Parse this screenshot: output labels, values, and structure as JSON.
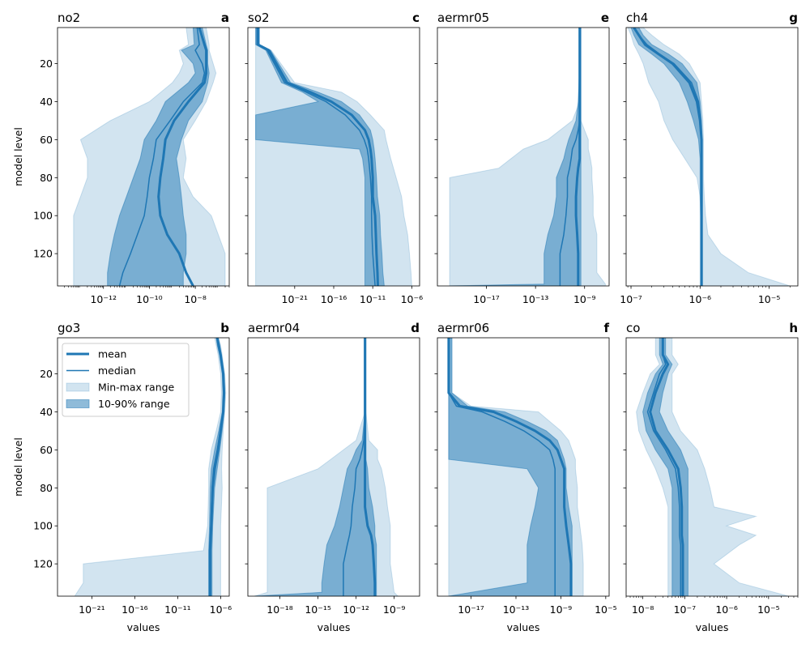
{
  "common": {
    "ylabel": "model level",
    "xlabel": "values",
    "ylim": [
      137,
      1
    ],
    "yticks": [
      20,
      40,
      60,
      80,
      100,
      120
    ],
    "colors": {
      "line": "#1f77b4",
      "minmax": "#1f77b4",
      "minmax_opacity": 0.2,
      "pct": "#1f77b4",
      "pct_opacity": 0.5
    }
  },
  "legend": [
    {
      "label": "mean",
      "style": "mean"
    },
    {
      "label": "median",
      "style": "median"
    },
    {
      "label": "Min-max range",
      "style": "minmax"
    },
    {
      "label": "10-90% range",
      "style": "pct"
    }
  ],
  "chart_data": [
    {
      "id": "no2",
      "title": "no2",
      "letter": "a",
      "type": "area",
      "xscale": "log",
      "xlim": [
        1e-14,
        3e-07
      ],
      "xtick_exps": [
        -12,
        -10,
        -8
      ],
      "levels": [
        1,
        10,
        13,
        20,
        25,
        30,
        40,
        50,
        60,
        70,
        80,
        90,
        100,
        110,
        120,
        130,
        137
      ],
      "mean": [
        1.5e-08,
        2.5e-08,
        3e-08,
        3e-08,
        3e-08,
        2.5e-08,
        5e-09,
        1.2e-09,
        5e-10,
        4e-10,
        3e-10,
        2.5e-10,
        3e-10,
        6e-10,
        2e-09,
        4e-09,
        8e-09
      ],
      "median": [
        1.2e-08,
        1.5e-08,
        1e-08,
        2e-08,
        2.5e-08,
        2e-08,
        3e-09,
        8e-10,
        2e-10,
        1.5e-10,
        1e-10,
        8e-11,
        6e-11,
        3e-11,
        1.5e-11,
        7e-12,
        5e-12
      ],
      "p10": [
        8e-09,
        9e-09,
        2.5e-09,
        8e-09,
        1e-08,
        5e-09,
        5e-10,
        2e-10,
        6e-11,
        4e-11,
        2e-11,
        1e-11,
        5e-12,
        3e-12,
        2e-12,
        1.5e-12,
        1.5e-12
      ],
      "p90": [
        2e-08,
        3e-08,
        3.5e-08,
        3.5e-08,
        4e-08,
        3.5e-08,
        2e-08,
        5e-09,
        2.5e-09,
        1.5e-09,
        2e-09,
        2.5e-09,
        3e-09,
        4e-09,
        4e-09,
        3e-09,
        3e-09
      ],
      "min": [
        4e-09,
        5e-09,
        2e-09,
        3e-09,
        2e-09,
        1e-09,
        1e-10,
        2e-12,
        1e-13,
        2e-13,
        2e-13,
        1e-13,
        5e-14,
        5e-14,
        5e-14,
        5e-14,
        5e-14
      ],
      "max": [
        3e-08,
        4e-08,
        4e-08,
        6e-08,
        8e-08,
        6e-08,
        3e-08,
        1e-08,
        3e-09,
        4e-09,
        3e-09,
        8e-09,
        5e-08,
        1e-07,
        2e-07,
        2e-07,
        2e-07
      ]
    },
    {
      "id": "so2",
      "title": "so2",
      "letter": "c",
      "type": "area",
      "xscale": "log",
      "xlim": [
        1e-27,
        1e-05
      ],
      "xtick_exps": [
        -21,
        -16,
        -11,
        -6
      ],
      "levels": [
        1,
        10,
        13,
        30,
        35,
        40,
        47,
        55,
        60,
        65,
        70,
        80,
        90,
        100,
        110,
        120,
        130,
        137
      ],
      "mean": [
        2e-26,
        2e-26,
        5e-25,
        1e-22,
        1e-19,
        5e-17,
        2e-14,
        1e-12,
        3e-12,
        5e-12,
        7e-12,
        1e-11,
        1e-11,
        2e-11,
        2.5e-11,
        3e-11,
        4e-11,
        4.5e-11
      ],
      "median": [
        1.5e-26,
        1.5e-26,
        3e-25,
        5e-23,
        3e-20,
        1e-17,
        3e-15,
        2e-13,
        8e-13,
        2e-12,
        3e-12,
        5e-12,
        7e-12,
        7e-12,
        8e-12,
        1e-11,
        1.5e-11,
        2e-11
      ],
      "p10": [
        1e-26,
        1e-26,
        2e-25,
        2e-23,
        1e-20,
        1e-18,
        1e-26,
        1e-26,
        1e-26,
        2e-13,
        5e-13,
        1e-12,
        1e-12,
        1e-12,
        1e-12,
        1e-12,
        1e-12,
        1e-12
      ],
      "p90": [
        3e-26,
        3e-26,
        8e-25,
        3e-22,
        1e-18,
        1e-15,
        2e-13,
        5e-12,
        1e-11,
        1.5e-11,
        2e-11,
        3e-11,
        4e-11,
        8e-11,
        1e-10,
        1.5e-10,
        2e-10,
        3e-10
      ],
      "min": [
        1e-26,
        1e-26,
        1e-26,
        1e-26,
        1e-26,
        1e-26,
        1e-26,
        1e-26,
        1e-26,
        1e-26,
        1e-26,
        1e-26,
        1e-26,
        1e-26,
        1e-26,
        1e-26,
        1e-26,
        1e-26
      ],
      "max": [
        3e-26,
        3e-26,
        1e-24,
        1e-21,
        1e-15,
        1e-13,
        5e-12,
        3e-10,
        5e-10,
        1e-09,
        2e-09,
        1e-08,
        5e-08,
        1e-07,
        3e-07,
        5e-07,
        8e-07,
        1e-06
      ]
    },
    {
      "id": "aermr05",
      "title": "aermr05",
      "letter": "e",
      "type": "area",
      "xscale": "log",
      "xlim": [
        1e-21,
        1e-07
      ],
      "xtick_exps": [
        -17,
        -13,
        -9
      ],
      "levels": [
        1,
        20,
        40,
        50,
        55,
        60,
        65,
        70,
        75,
        80,
        90,
        100,
        110,
        120,
        130,
        136,
        137
      ],
      "mean": [
        4e-10,
        4e-10,
        4e-10,
        4e-10,
        4e-10,
        4e-10,
        4e-10,
        4e-10,
        3e-10,
        2.5e-10,
        2e-10,
        2e-10,
        2.5e-10,
        3e-10,
        3e-10,
        3e-10,
        3e-10
      ],
      "median": [
        4e-10,
        4e-10,
        4e-10,
        4e-10,
        3e-10,
        2e-10,
        1e-10,
        8e-11,
        6e-11,
        4e-11,
        4e-11,
        3e-11,
        2e-11,
        1e-11,
        1e-11,
        1e-11,
        1e-11
      ],
      "p10": [
        4e-10,
        4e-10,
        3e-10,
        2e-10,
        1e-10,
        5e-11,
        3e-11,
        2e-11,
        1e-11,
        5e-12,
        5e-12,
        3e-12,
        1e-12,
        5e-13,
        5e-13,
        5e-13,
        1e-20
      ],
      "p90": [
        5e-10,
        5e-10,
        5e-10,
        5e-10,
        5e-10,
        5e-10,
        5e-10,
        5e-10,
        5e-10,
        5e-10,
        5e-10,
        5e-10,
        5e-10,
        5e-10,
        5e-10,
        5e-10,
        5e-10
      ],
      "min": [
        4e-10,
        4e-10,
        4e-10,
        1e-10,
        1e-11,
        1e-12,
        1e-14,
        1e-15,
        1e-16,
        1e-20,
        1e-20,
        1e-20,
        1e-20,
        1e-20,
        1e-20,
        1e-20,
        1e-20
      ],
      "max": [
        5e-10,
        5e-10,
        5e-10,
        5e-10,
        1e-09,
        2e-09,
        2e-09,
        3e-09,
        4e-09,
        4e-09,
        5e-09,
        5e-09,
        1e-08,
        1e-08,
        1e-08,
        5e-08,
        5e-08
      ]
    },
    {
      "id": "ch4",
      "title": "ch4",
      "letter": "g",
      "type": "area",
      "xscale": "log",
      "xlim": [
        8.5e-08,
        2.6e-05
      ],
      "xtick_exps": [
        -7,
        -6,
        -5
      ],
      "levels": [
        1,
        5,
        10,
        15,
        20,
        30,
        40,
        50,
        60,
        70,
        80,
        90,
        100,
        110,
        120,
        130,
        137
      ],
      "mean": [
        1.1e-07,
        1.3e-07,
        1.6e-07,
        2.5e-07,
        4e-07,
        7e-07,
        9e-07,
        1e-06,
        1.05e-06,
        1.05e-06,
        1.05e-06,
        1.05e-06,
        1.05e-06,
        1.05e-06,
        1.05e-06,
        1.05e-06,
        1.05e-06
      ],
      "median": [
        1.1e-07,
        1.3e-07,
        1.7e-07,
        2.6e-07,
        4.2e-07,
        7.5e-07,
        9.5e-07,
        1.02e-06,
        1.05e-06,
        1.05e-06,
        1.05e-06,
        1.05e-06,
        1.05e-06,
        1.05e-06,
        1.05e-06,
        1.05e-06,
        1.05e-06
      ],
      "p10": [
        1e-07,
        1.1e-07,
        1.3e-07,
        2e-07,
        3e-07,
        5e-07,
        6.5e-07,
        8e-07,
        9.5e-07,
        1e-06,
        1e-06,
        1e-06,
        1.02e-06,
        1.02e-06,
        1.02e-06,
        1.02e-06,
        1.02e-06
      ],
      "p90": [
        1.3e-07,
        1.5e-07,
        2e-07,
        3.5e-07,
        5.5e-07,
        9e-07,
        1e-06,
        1.05e-06,
        1.08e-06,
        1.08e-06,
        1.08e-06,
        1.08e-06,
        1.08e-06,
        1.08e-06,
        1.08e-06,
        1.08e-06,
        1.08e-06
      ],
      "min": [
        9e-08,
        1e-07,
        1.1e-07,
        1.3e-07,
        1.5e-07,
        1.8e-07,
        2.5e-07,
        3e-07,
        4e-07,
        6e-07,
        9e-07,
        1e-06,
        1e-06,
        1e-06,
        1e-06,
        1e-06,
        1e-06
      ],
      "max": [
        1.5e-07,
        2e-07,
        3e-07,
        5e-07,
        7e-07,
        1e-06,
        1.05e-06,
        1.1e-06,
        1.12e-06,
        1.12e-06,
        1.12e-06,
        1.15e-06,
        1.2e-06,
        1.3e-06,
        2e-06,
        5e-06,
        2e-05
      ]
    },
    {
      "id": "go3",
      "title": "go3",
      "letter": "b",
      "type": "area",
      "xscale": "log",
      "xlim": [
        1e-25,
        1e-05
      ],
      "xtick_exps": [
        -21,
        -16,
        -11,
        -6
      ],
      "levels": [
        1,
        5,
        10,
        20,
        30,
        40,
        50,
        60,
        70,
        80,
        100,
        113,
        120,
        130,
        137
      ],
      "mean": [
        4e-07,
        6e-07,
        1e-06,
        2e-06,
        2.5e-06,
        2e-06,
        1e-06,
        5e-07,
        2e-07,
        1.2e-07,
        8e-08,
        6e-08,
        6e-08,
        6e-08,
        6e-08
      ],
      "median": [
        3.5e-07,
        5e-07,
        9e-07,
        1.8e-06,
        2.2e-06,
        1.8e-06,
        9e-07,
        4e-07,
        1.5e-07,
        1e-07,
        7e-08,
        5e-08,
        5e-08,
        5e-08,
        5e-08
      ],
      "p10": [
        3e-07,
        4e-07,
        7e-07,
        1.5e-06,
        1.8e-06,
        1.5e-06,
        6e-07,
        2e-07,
        8e-08,
        6e-08,
        5e-08,
        4e-08,
        4e-08,
        4e-08,
        4e-08
      ],
      "p90": [
        5e-07,
        8e-07,
        1.2e-06,
        2.5e-06,
        3e-06,
        2.5e-06,
        1.5e-06,
        8e-07,
        4e-07,
        2e-07,
        1.2e-07,
        1e-07,
        1e-07,
        1e-07,
        1e-07
      ],
      "min": [
        2e-07,
        3e-07,
        5e-07,
        1e-06,
        1.2e-06,
        1e-06,
        3e-07,
        8e-08,
        4e-08,
        4e-08,
        3e-08,
        1e-08,
        1e-22,
        1e-22,
        1e-23
      ],
      "max": [
        6e-07,
        1e-06,
        1.5e-06,
        3e-06,
        4e-06,
        3e-06,
        2e-06,
        1.5e-06,
        1.3e-06,
        1.5e-06,
        1e-06,
        1e-06,
        1e-06,
        1e-06,
        1e-06
      ]
    },
    {
      "id": "aermr04",
      "title": "aermr04",
      "letter": "d",
      "type": "area",
      "xscale": "log",
      "xlim": [
        3e-21,
        1e-07
      ],
      "xtick_exps": [
        -18,
        -15,
        -12,
        -9
      ],
      "levels": [
        1,
        40,
        55,
        60,
        65,
        70,
        80,
        90,
        100,
        105,
        110,
        120,
        130,
        135,
        137
      ],
      "mean": [
        5e-12,
        5e-12,
        5e-12,
        5e-12,
        5e-12,
        5e-12,
        5e-12,
        5e-12,
        8e-12,
        1.5e-11,
        2e-11,
        2.5e-11,
        3e-11,
        3e-11,
        3e-11
      ],
      "median": [
        5e-12,
        5e-12,
        4e-12,
        3e-12,
        2e-12,
        1e-12,
        8e-13,
        5e-13,
        4e-13,
        3e-13,
        2e-13,
        1e-13,
        1e-13,
        1e-13,
        1e-13
      ],
      "p10": [
        5e-12,
        5e-12,
        3e-12,
        1e-12,
        5e-13,
        2e-13,
        1e-13,
        5e-14,
        2e-14,
        1e-14,
        5e-15,
        3e-15,
        2e-15,
        2e-15,
        1e-20
      ],
      "p90": [
        6e-12,
        6e-12,
        6e-12,
        6e-12,
        6e-12,
        8e-12,
        1e-11,
        2e-11,
        3e-11,
        3e-11,
        4e-11,
        4e-11,
        4e-11,
        4e-11,
        4e-11
      ],
      "min": [
        5e-12,
        5e-12,
        1e-12,
        1e-13,
        1e-14,
        1e-15,
        1e-19,
        1e-19,
        1e-19,
        1e-19,
        1e-19,
        1e-19,
        1e-19,
        1e-19,
        1e-20
      ],
      "max": [
        6e-12,
        6e-12,
        1e-11,
        5e-11,
        5e-11,
        1e-10,
        2e-10,
        3e-10,
        5e-10,
        5e-10,
        5e-10,
        5e-10,
        8e-10,
        1e-09,
        2e-09
      ]
    },
    {
      "id": "aermr06",
      "title": "aermr06",
      "letter": "f",
      "type": "area",
      "xscale": "log",
      "xlim": [
        1e-20,
        2e-05
      ],
      "xtick_exps": [
        -17,
        -13,
        -9,
        -5
      ],
      "levels": [
        1,
        30,
        37,
        40,
        45,
        50,
        55,
        60,
        65,
        70,
        80,
        90,
        100,
        110,
        120,
        130,
        137
      ],
      "mean": [
        1e-19,
        1e-19,
        1e-18,
        1e-15,
        1e-13,
        5e-12,
        1e-10,
        5e-10,
        1e-09,
        2e-09,
        2e-09,
        2e-09,
        3e-09,
        5e-09,
        8e-09,
        8e-09,
        8e-09
      ],
      "median": [
        1e-19,
        1e-19,
        5e-19,
        1e-16,
        1e-14,
        5e-13,
        1e-11,
        1e-10,
        2e-10,
        3e-10,
        3e-10,
        3e-10,
        3e-10,
        3e-10,
        3e-10,
        3e-10,
        3e-10
      ],
      "p10": [
        1e-19,
        1e-19,
        1e-19,
        1e-19,
        1e-19,
        1e-19,
        1e-19,
        1e-19,
        1e-19,
        1e-12,
        1e-11,
        5e-12,
        2e-12,
        1e-12,
        1e-12,
        1e-12,
        1e-19
      ],
      "p90": [
        2e-19,
        2e-19,
        5e-18,
        1e-14,
        1e-12,
        5e-11,
        5e-10,
        1e-09,
        2e-09,
        3e-09,
        3e-09,
        5e-09,
        1e-08,
        1e-08,
        1e-08,
        1e-08,
        1e-08
      ],
      "min": [
        1e-19,
        1e-19,
        1e-19,
        1e-19,
        1e-19,
        1e-19,
        1e-19,
        1e-19,
        1e-19,
        1e-19,
        1e-19,
        1e-19,
        1e-19,
        1e-19,
        1e-19,
        1e-19,
        1e-19
      ],
      "max": [
        2e-19,
        2e-19,
        1e-17,
        1e-11,
        1e-10,
        1e-09,
        5e-09,
        1e-08,
        2e-08,
        2e-08,
        3e-08,
        3e-08,
        5e-08,
        8e-08,
        1e-07,
        1e-07,
        1e-07
      ]
    },
    {
      "id": "co",
      "title": "co",
      "letter": "h",
      "type": "area",
      "xscale": "log",
      "xlim": [
        4e-09,
        5e-05
      ],
      "xtick_exps": [
        -8,
        -7,
        -6,
        -5
      ],
      "levels": [
        1,
        10,
        15,
        20,
        30,
        40,
        50,
        60,
        70,
        80,
        90,
        95,
        100,
        105,
        110,
        120,
        130,
        137
      ],
      "mean": [
        3e-08,
        3e-08,
        4e-08,
        3e-08,
        2e-08,
        1.5e-08,
        2e-08,
        4e-08,
        7e-08,
        8e-08,
        8.5e-08,
        8.5e-08,
        8.5e-08,
        8.5e-08,
        9e-08,
        9e-08,
        9e-08,
        9e-08
      ],
      "median": [
        3e-08,
        3e-08,
        3.5e-08,
        2.5e-08,
        1.8e-08,
        1.3e-08,
        1.8e-08,
        3.5e-08,
        6e-08,
        7e-08,
        7.5e-08,
        7.5e-08,
        7.5e-08,
        7.5e-08,
        8e-08,
        8e-08,
        8e-08,
        8e-08
      ],
      "p10": [
        2.5e-08,
        2.5e-08,
        3e-08,
        2e-08,
        1.3e-08,
        1e-08,
        1.2e-08,
        2e-08,
        4e-08,
        5e-08,
        5e-08,
        5e-08,
        5e-08,
        5e-08,
        5e-08,
        5e-08,
        5e-08,
        5e-08
      ],
      "p90": [
        3.5e-08,
        3.5e-08,
        5e-08,
        4e-08,
        3e-08,
        2.5e-08,
        4e-08,
        8e-08,
        1.2e-07,
        1.2e-07,
        1.2e-07,
        1.2e-07,
        1.2e-07,
        1.2e-07,
        1.2e-07,
        1.2e-07,
        1.2e-07,
        1.2e-07
      ],
      "min": [
        2e-08,
        2e-08,
        2.5e-08,
        1.5e-08,
        1e-08,
        7e-09,
        8e-09,
        1.2e-08,
        2e-08,
        3e-08,
        4e-08,
        4e-08,
        4e-08,
        4e-08,
        4e-08,
        4e-08,
        4e-08,
        4e-08
      ],
      "max": [
        5e-08,
        5e-08,
        7e-08,
        5e-08,
        5e-08,
        5e-08,
        8e-08,
        2e-07,
        3e-07,
        4e-07,
        5e-07,
        5e-06,
        1e-06,
        5e-06,
        2e-06,
        5e-07,
        2e-06,
        3e-05
      ]
    }
  ]
}
